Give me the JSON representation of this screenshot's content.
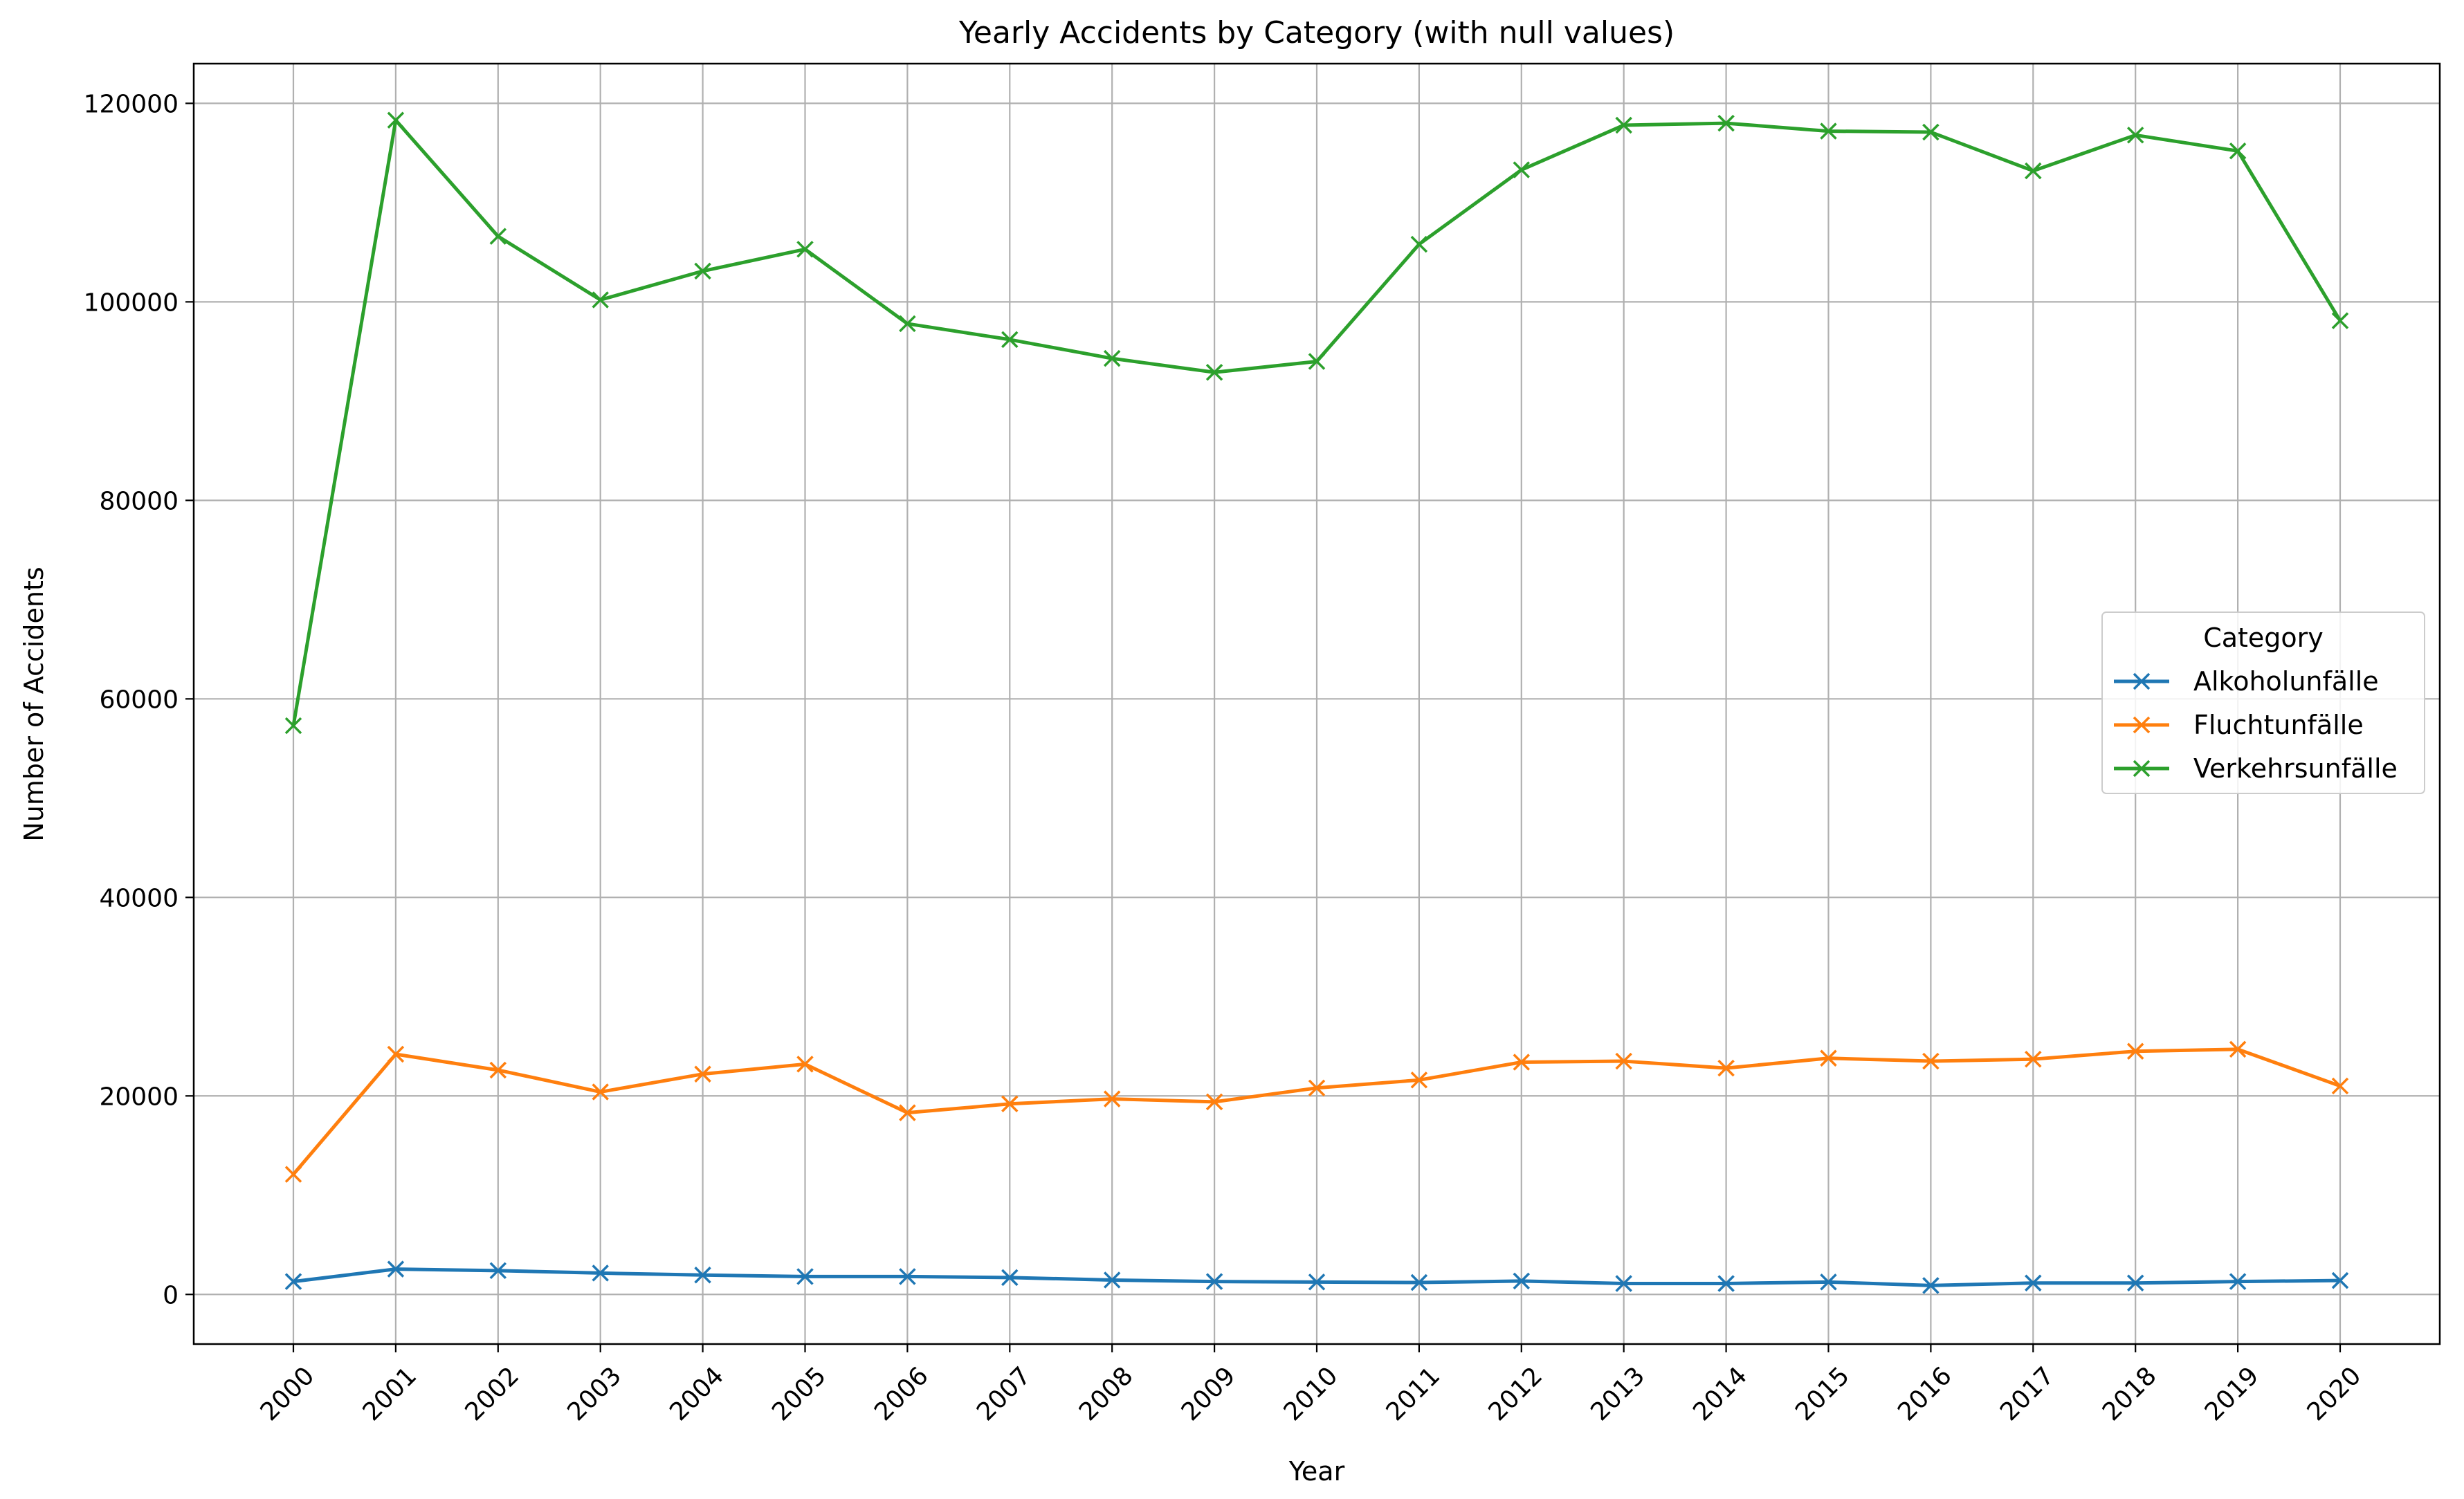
{
  "chart_data": {
    "type": "line",
    "title": "Yearly Accidents by Category (with null values)",
    "xlabel": "Year",
    "ylabel": "Number of Accidents",
    "x": [
      "2000",
      "2001",
      "2002",
      "2003",
      "2004",
      "2005",
      "2006",
      "2007",
      "2008",
      "2009",
      "2010",
      "2011",
      "2012",
      "2013",
      "2014",
      "2015",
      "2016",
      "2017",
      "2018",
      "2019",
      "2020"
    ],
    "ylim": [
      -5000,
      124000
    ],
    "yticks": [
      0,
      20000,
      40000,
      60000,
      80000,
      100000,
      120000
    ],
    "ytick_labels": [
      "0",
      "20000",
      "40000",
      "60000",
      "80000",
      "100000",
      "120000"
    ],
    "grid": true,
    "marker": "x",
    "legend": {
      "title": "Category",
      "position": "center-right"
    },
    "series": [
      {
        "name": "Alkoholunfälle",
        "color": "#1f77b4",
        "values": [
          1300,
          2550,
          2400,
          2150,
          1950,
          1800,
          1800,
          1700,
          1450,
          1300,
          1250,
          1200,
          1350,
          1100,
          1100,
          1250,
          900,
          1150,
          1150,
          1300,
          1400
        ]
      },
      {
        "name": "Fluchtunfälle",
        "color": "#ff7f0e",
        "values": [
          12100,
          24200,
          22600,
          20400,
          22200,
          23200,
          18300,
          19200,
          19700,
          19400,
          20800,
          21600,
          23400,
          23500,
          22800,
          23800,
          23500,
          23700,
          24500,
          24700,
          21000
        ]
      },
      {
        "name": "Verkehrsunfälle",
        "color": "#2ca02c",
        "values": [
          57300,
          118300,
          106600,
          100200,
          103100,
          105300,
          97800,
          96200,
          94300,
          92900,
          94000,
          105800,
          113300,
          117800,
          118000,
          117200,
          117100,
          113200,
          116800,
          115200,
          98100
        ]
      }
    ]
  }
}
